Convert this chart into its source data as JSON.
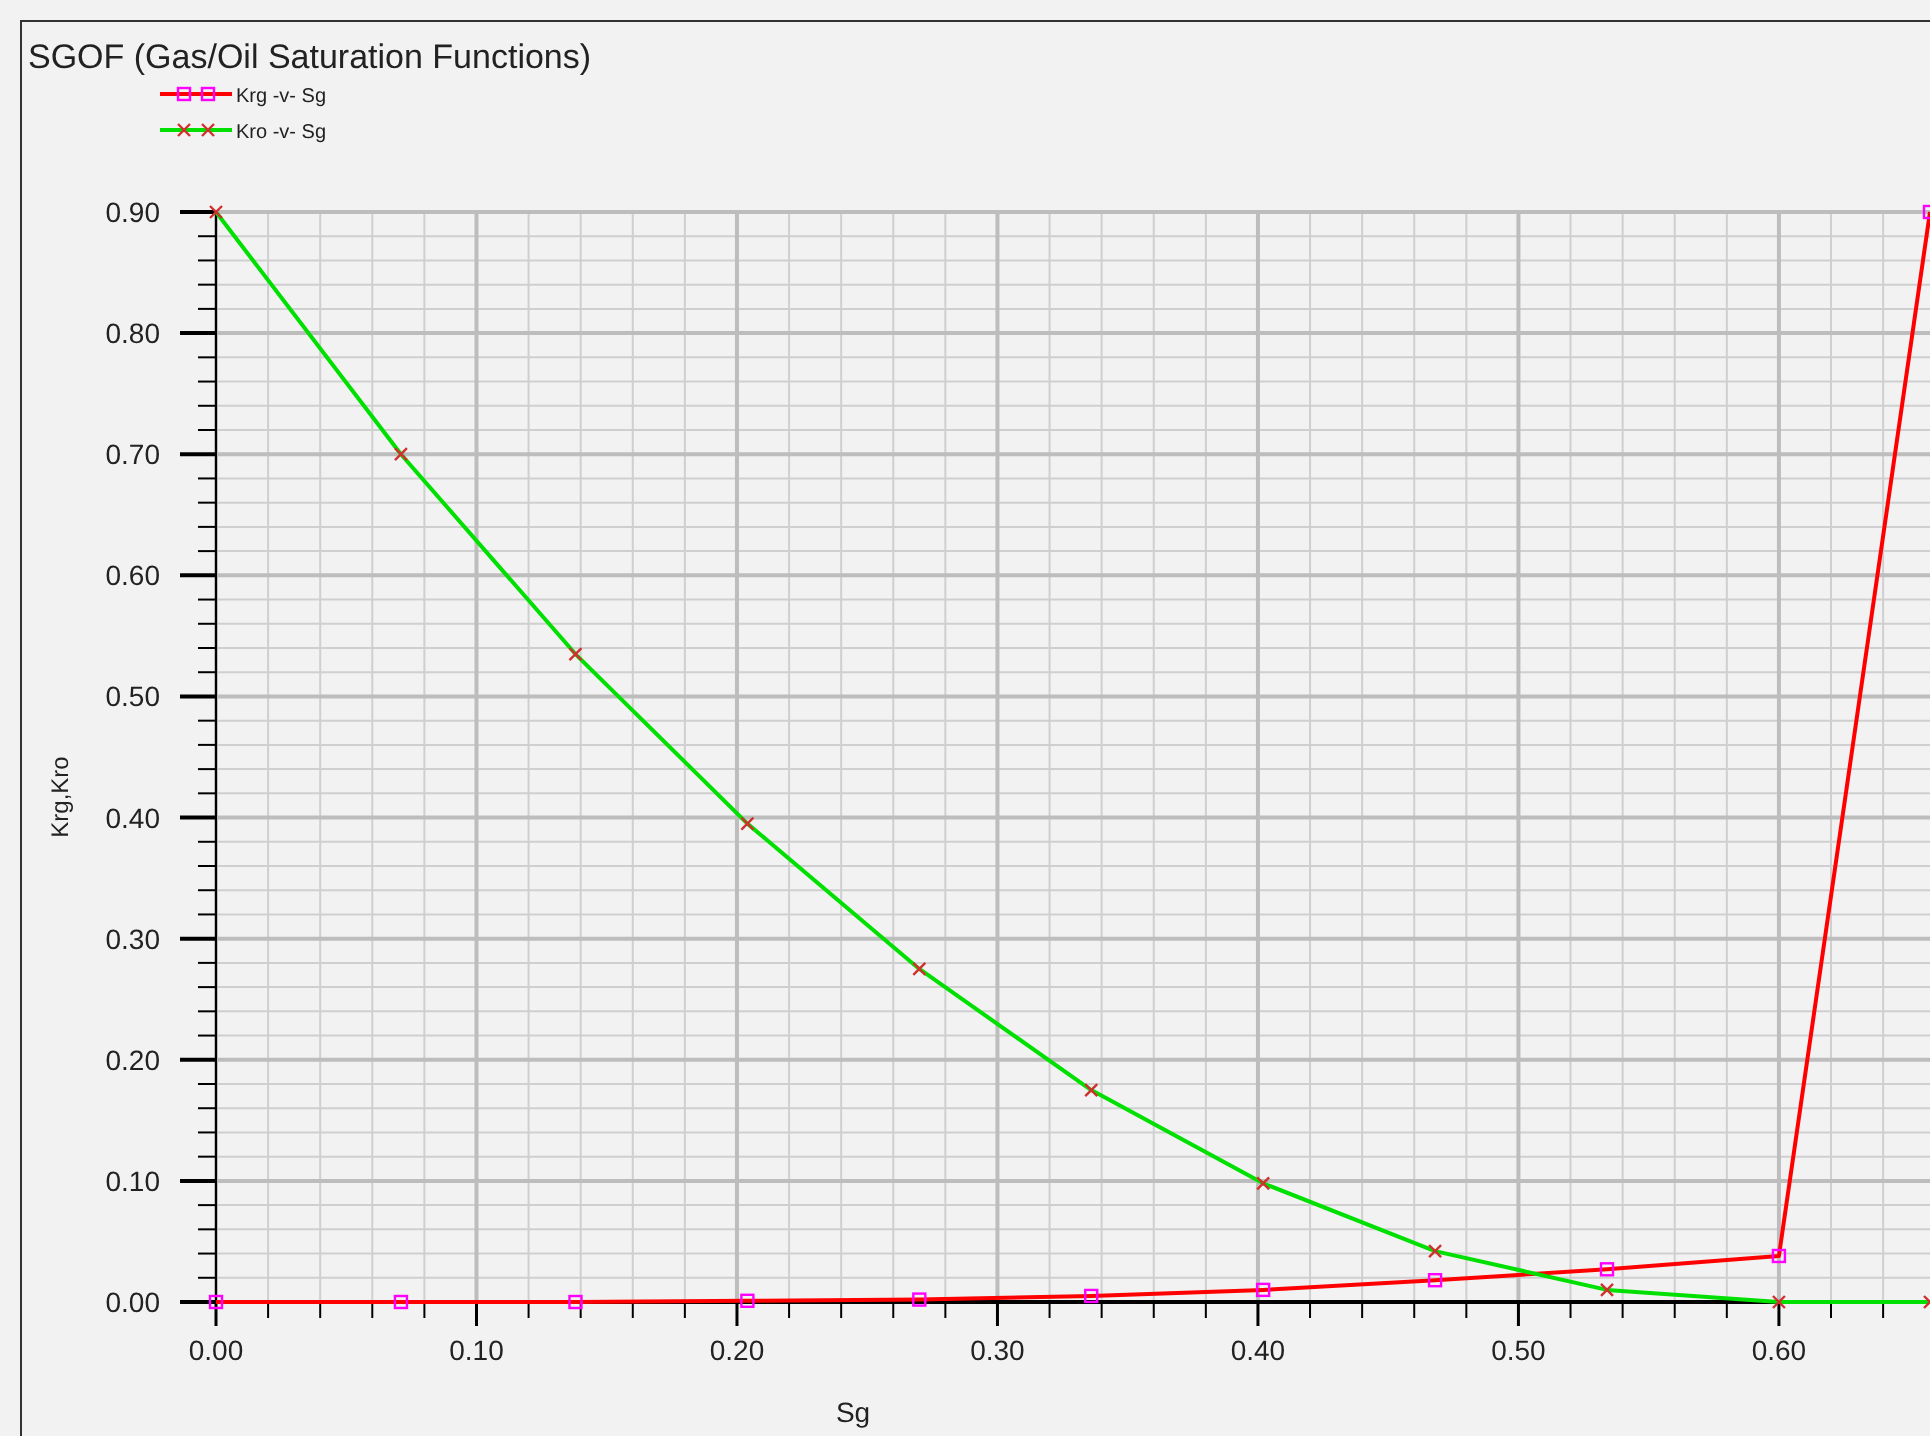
{
  "chart_data": {
    "type": "line",
    "title": "SGOF (Gas/Oil Saturation Functions)",
    "xlabel": "Sg",
    "ylabel": "Krg,Kro",
    "x": [
      0,
      0.071,
      0.138,
      0.204,
      0.27,
      0.336,
      0.402,
      0.468,
      0.534,
      0.6,
      0.658
    ],
    "series": [
      {
        "name": "Krg -v- Sg",
        "color": "#ff0000",
        "marker": "square",
        "values": [
          0,
          0,
          0,
          0.001,
          0.002,
          0.005,
          0.01,
          0.018,
          0.027,
          0.038,
          0.9
        ]
      },
      {
        "name": "Kro -v- Sg",
        "color": "#00e000",
        "marker": "cross",
        "values": [
          0.9,
          0.7,
          0.535,
          0.395,
          0.275,
          0.175,
          0.098,
          0.042,
          0.01,
          0,
          0
        ]
      }
    ],
    "xlim": [
      0,
      0.658
    ],
    "ylim": [
      0,
      0.9
    ],
    "xticks": [
      {
        "value": 0,
        "label": "0.00"
      },
      {
        "value": 0.1,
        "label": "0.10"
      },
      {
        "value": 0.2,
        "label": "0.20"
      },
      {
        "value": 0.3,
        "label": "0.30"
      },
      {
        "value": 0.4,
        "label": "0.40"
      },
      {
        "value": 0.5,
        "label": "0.50"
      },
      {
        "value": 0.6,
        "label": "0.60"
      }
    ],
    "yticks": [
      {
        "value": 0,
        "label": "0.00"
      },
      {
        "value": 0.1,
        "label": "0.10"
      },
      {
        "value": 0.2,
        "label": "0.20"
      },
      {
        "value": 0.3,
        "label": "0.30"
      },
      {
        "value": 0.4,
        "label": "0.40"
      },
      {
        "value": 0.5,
        "label": "0.50"
      },
      {
        "value": 0.6,
        "label": "0.60"
      },
      {
        "value": 0.7,
        "label": "0.70"
      },
      {
        "value": 0.8,
        "label": "0.80"
      },
      {
        "value": 0.9,
        "label": "0.90"
      }
    ],
    "grid": true,
    "legend": "top left"
  }
}
